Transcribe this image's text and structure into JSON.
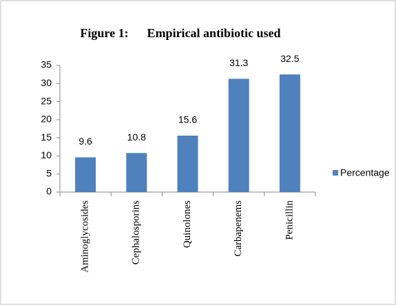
{
  "chart_data": {
    "type": "bar",
    "title": "Figure 1:      Empirical antibiotic used",
    "categories": [
      "Aminoglycosides",
      "Cephalosporins",
      "Quinolones",
      "Carbapenems",
      "Penicillin"
    ],
    "series": [
      {
        "name": "Percentage",
        "color": "#4f81bd",
        "values": [
          9.6,
          10.8,
          15.6,
          31.3,
          32.5
        ]
      }
    ],
    "ylim": [
      0,
      35
    ],
    "yticks": [
      0,
      5,
      10,
      15,
      20,
      25,
      30,
      35
    ],
    "grid": false,
    "legend": "right"
  }
}
